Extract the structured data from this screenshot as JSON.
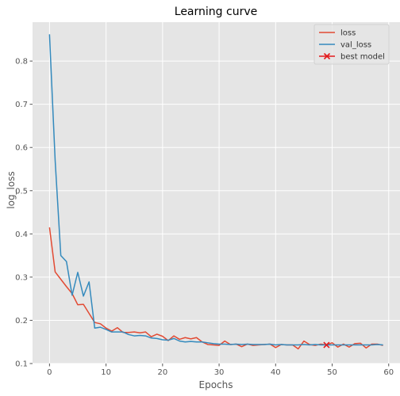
{
  "chart_data": {
    "type": "line",
    "title": "Learning curve",
    "xlabel": "Epochs",
    "ylabel": "log_loss",
    "xlim": [
      -3,
      62
    ],
    "ylim": [
      0.1,
      0.89
    ],
    "x_ticks": [
      0,
      10,
      20,
      30,
      40,
      50,
      60
    ],
    "y_ticks": [
      0.1,
      0.2,
      0.3,
      0.4,
      0.5,
      0.6,
      0.7,
      0.8
    ],
    "grid": true,
    "legend_position": "top-right",
    "series": [
      {
        "name": "loss",
        "color": "#E24A33",
        "x": [
          0,
          1,
          2,
          3,
          4,
          5,
          6,
          7,
          8,
          9,
          10,
          11,
          12,
          13,
          14,
          15,
          16,
          17,
          18,
          19,
          20,
          21,
          22,
          23,
          24,
          25,
          26,
          27,
          28,
          29,
          30,
          31,
          32,
          33,
          34,
          35,
          36,
          37,
          38,
          39,
          40,
          41,
          42,
          43,
          44,
          45,
          46,
          47,
          48,
          49,
          50,
          51,
          52,
          53,
          54,
          55,
          56,
          57,
          58,
          59
        ],
        "values": [
          0.415,
          0.312,
          0.295,
          0.278,
          0.262,
          0.236,
          0.237,
          0.216,
          0.195,
          0.192,
          0.182,
          0.175,
          0.183,
          0.172,
          0.172,
          0.173,
          0.171,
          0.173,
          0.162,
          0.168,
          0.163,
          0.153,
          0.164,
          0.156,
          0.16,
          0.157,
          0.16,
          0.15,
          0.144,
          0.143,
          0.142,
          0.152,
          0.144,
          0.145,
          0.139,
          0.145,
          0.142,
          0.143,
          0.144,
          0.145,
          0.137,
          0.144,
          0.143,
          0.143,
          0.134,
          0.152,
          0.144,
          0.142,
          0.145,
          0.143,
          0.148,
          0.138,
          0.145,
          0.138,
          0.146,
          0.147,
          0.136,
          0.145,
          0.145,
          0.142
        ]
      },
      {
        "name": "val_loss",
        "color": "#348ABD",
        "x": [
          0,
          1,
          2,
          3,
          4,
          5,
          6,
          7,
          8,
          9,
          10,
          11,
          12,
          13,
          14,
          15,
          16,
          17,
          18,
          19,
          20,
          21,
          22,
          23,
          24,
          25,
          26,
          27,
          28,
          29,
          30,
          31,
          32,
          33,
          34,
          35,
          36,
          37,
          38,
          39,
          40,
          41,
          42,
          43,
          44,
          45,
          46,
          47,
          48,
          49,
          50,
          51,
          52,
          53,
          54,
          55,
          56,
          57,
          58,
          59
        ],
        "values": [
          0.862,
          0.57,
          0.35,
          0.336,
          0.258,
          0.311,
          0.256,
          0.289,
          0.182,
          0.184,
          0.179,
          0.173,
          0.173,
          0.173,
          0.167,
          0.164,
          0.165,
          0.164,
          0.159,
          0.158,
          0.155,
          0.154,
          0.158,
          0.152,
          0.15,
          0.151,
          0.15,
          0.15,
          0.148,
          0.146,
          0.145,
          0.145,
          0.144,
          0.145,
          0.144,
          0.145,
          0.144,
          0.144,
          0.144,
          0.145,
          0.143,
          0.144,
          0.143,
          0.143,
          0.143,
          0.144,
          0.143,
          0.144,
          0.143,
          0.143,
          0.143,
          0.143,
          0.143,
          0.143,
          0.143,
          0.143,
          0.143,
          0.143,
          0.144,
          0.143
        ]
      }
    ],
    "best_model": {
      "name": "best model",
      "color": "#E31A1C",
      "x": 49,
      "y": 0.143
    }
  }
}
